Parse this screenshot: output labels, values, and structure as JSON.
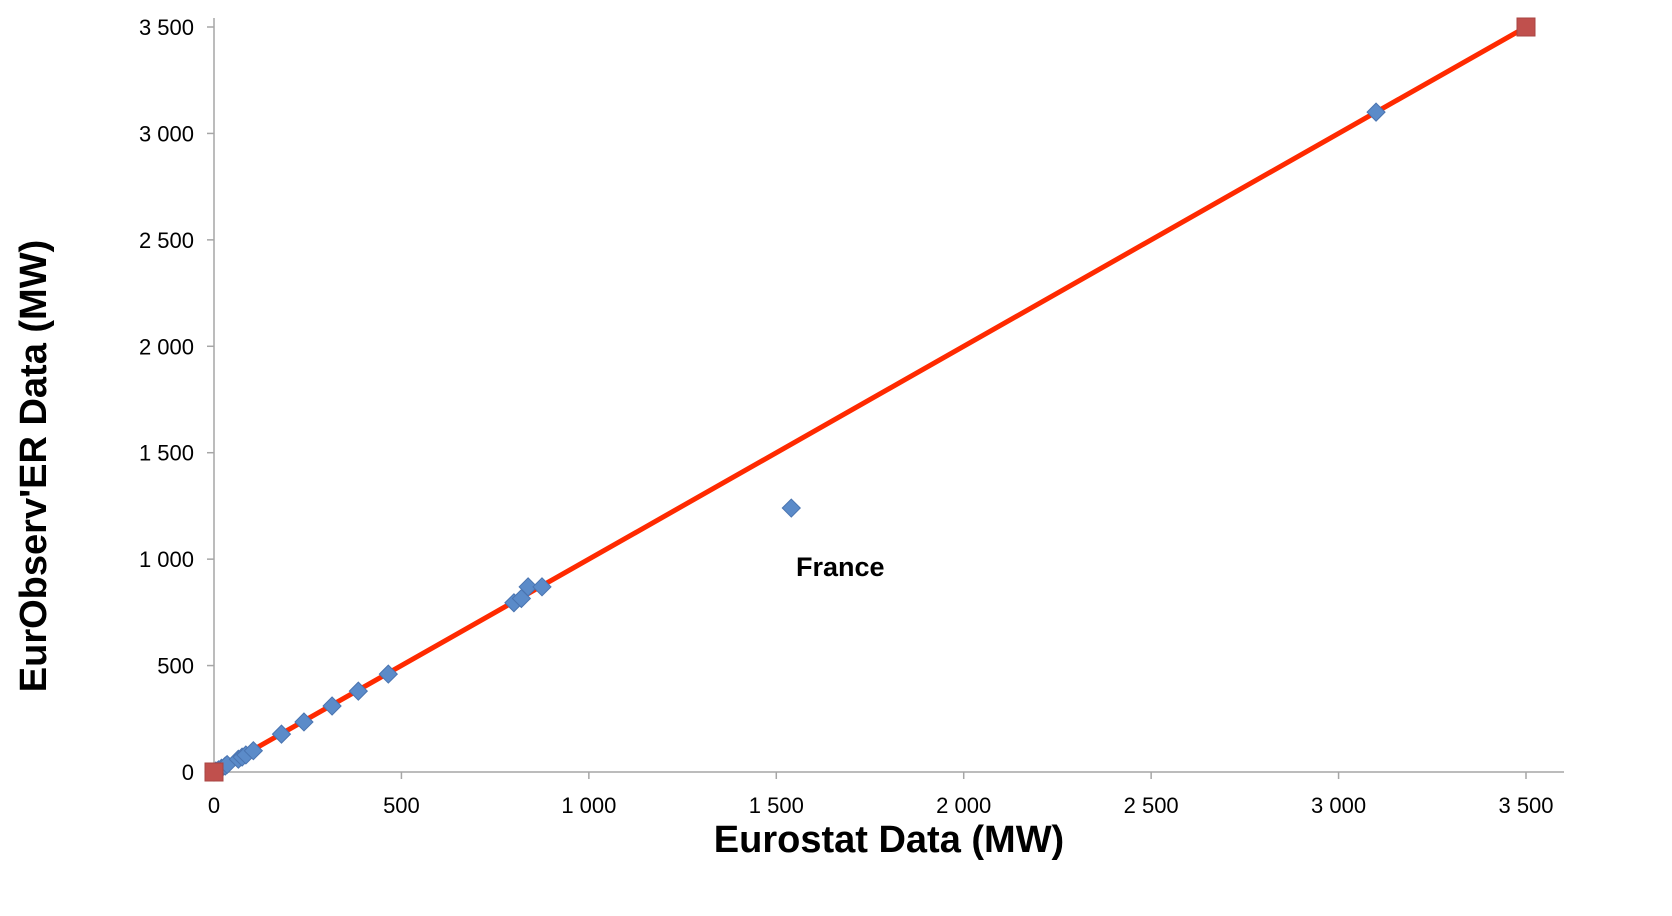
{
  "chart_data": {
    "type": "scatter",
    "xlabel": "Eurostat Data (MW)",
    "ylabel": "EurObserv'ER Data (MW)",
    "xlim": [
      0,
      3500
    ],
    "ylim": [
      0,
      3500
    ],
    "x_ticks": [
      0,
      500,
      1000,
      1500,
      2000,
      2500,
      3000,
      3500
    ],
    "y_ticks": [
      0,
      500,
      1000,
      1500,
      2000,
      2500,
      3000,
      3500
    ],
    "x_tick_labels": [
      "0",
      "500",
      "1 000",
      "1 500",
      "2 000",
      "2 500",
      "3 000",
      "3 500"
    ],
    "y_tick_labels": [
      "0",
      "500",
      "1 000",
      "1 500",
      "2 000",
      "2 500",
      "3 000",
      "3 500"
    ],
    "grid": false,
    "series": [
      {
        "marker": "diamond",
        "color": "#5b8bc9",
        "points": [
          {
            "x": 0,
            "y": 0
          },
          {
            "x": 5,
            "y": 5
          },
          {
            "x": 12,
            "y": 10
          },
          {
            "x": 20,
            "y": 18
          },
          {
            "x": 30,
            "y": 28
          },
          {
            "x": 35,
            "y": 35
          },
          {
            "x": 65,
            "y": 60
          },
          {
            "x": 75,
            "y": 70
          },
          {
            "x": 85,
            "y": 80
          },
          {
            "x": 105,
            "y": 100
          },
          {
            "x": 180,
            "y": 178
          },
          {
            "x": 240,
            "y": 235
          },
          {
            "x": 315,
            "y": 310
          },
          {
            "x": 385,
            "y": 380
          },
          {
            "x": 465,
            "y": 460
          },
          {
            "x": 800,
            "y": 795
          },
          {
            "x": 820,
            "y": 815
          },
          {
            "x": 838,
            "y": 870
          },
          {
            "x": 875,
            "y": 870
          },
          {
            "x": 1540,
            "y": 1240
          },
          {
            "x": 3100,
            "y": 3100
          }
        ]
      },
      {
        "marker": "square",
        "color": "#c0504d",
        "line_color": "#ff2a00",
        "points": [
          {
            "x": 0,
            "y": 0
          },
          {
            "x": 3500,
            "y": 3500
          }
        ]
      }
    ],
    "annotations": [
      {
        "text": "France",
        "x": 1540,
        "y": 1240
      }
    ]
  }
}
